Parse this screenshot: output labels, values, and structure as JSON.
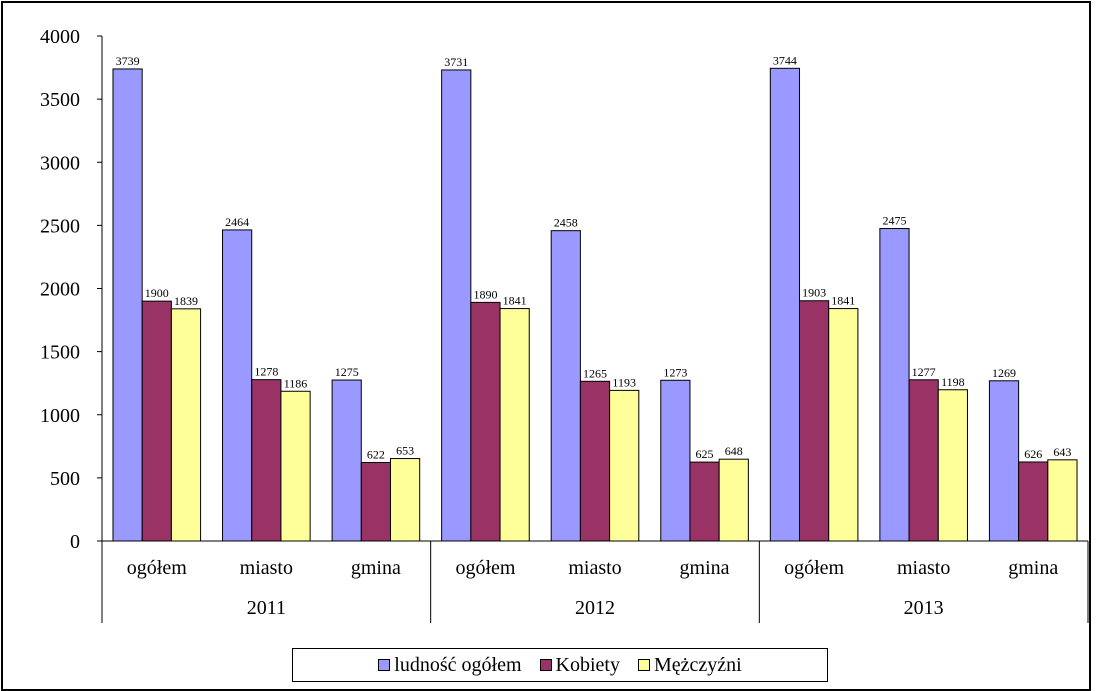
{
  "chart_data": {
    "type": "bar",
    "title": "",
    "xlabel": "",
    "ylabel": "",
    "ylim": [
      0,
      4000
    ],
    "yticks": [
      0,
      500,
      1000,
      1500,
      2000,
      2500,
      3000,
      3500,
      4000
    ],
    "groups": [
      "2011",
      "2012",
      "2013"
    ],
    "subcategories": [
      "ogółem",
      "miasto",
      "gmina"
    ],
    "series": [
      {
        "name": "ludność ogółem",
        "color": "#9999FF",
        "values": [
          3739,
          2464,
          1275,
          3731,
          2458,
          1273,
          3744,
          2475,
          1269
        ]
      },
      {
        "name": "Kobiety",
        "color": "#993366",
        "values": [
          1900,
          1278,
          622,
          1890,
          1265,
          625,
          1903,
          1277,
          626
        ]
      },
      {
        "name": "Mężczyźni",
        "color": "#FFFF99",
        "values": [
          1839,
          1186,
          653,
          1841,
          1193,
          648,
          1841,
          1198,
          643
        ]
      }
    ],
    "grid": false,
    "legend_position": "bottom"
  }
}
